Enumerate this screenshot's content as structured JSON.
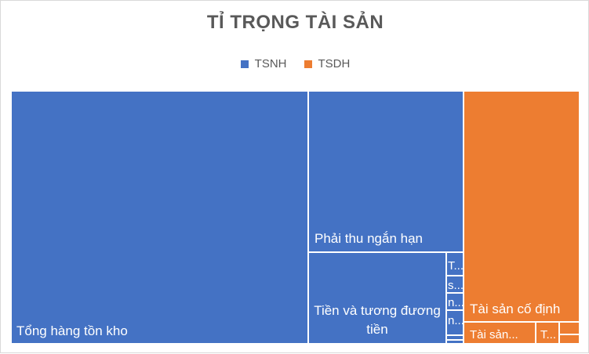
{
  "chart_data": {
    "type": "treemap",
    "title": "TỈ TRỌNG TÀI SẢN",
    "legend": [
      {
        "name": "TSNH",
        "color": "#4472C4"
      },
      {
        "name": "TSDH",
        "color": "#ED7D31"
      }
    ],
    "legend_position": "top",
    "nodes": [
      {
        "group": "TSNH",
        "label": "Tổng hàng tồn kho",
        "value": 55.5
      },
      {
        "group": "TSNH",
        "label": "Phải thu ngắn hạn",
        "value": 14.8
      },
      {
        "group": "TSNH",
        "label": "Tiền và tương đương tiền",
        "value": 8.8
      },
      {
        "group": "TSNH",
        "label": "T...",
        "value": 0.5
      },
      {
        "group": "TSNH",
        "label": "s...",
        "value": 0.3
      },
      {
        "group": "TSNH",
        "label": "n...",
        "value": 0.3
      },
      {
        "group": "TSNH",
        "label": "n...",
        "value": 0.3
      },
      {
        "group": "TSNH",
        "label": "",
        "value": 0.1
      },
      {
        "group": "TSNH",
        "label": "",
        "value": 0.1
      },
      {
        "group": "TSDH",
        "label": "Tài sản cố định",
        "value": 17.1
      },
      {
        "group": "TSDH",
        "label": "Tài sản...",
        "value": 1.8
      },
      {
        "group": "TSDH",
        "label": "T...",
        "value": 0.6
      },
      {
        "group": "TSDH",
        "label": "",
        "value": 0.2
      },
      {
        "group": "TSDH",
        "label": "",
        "value": 0.1
      }
    ]
  }
}
